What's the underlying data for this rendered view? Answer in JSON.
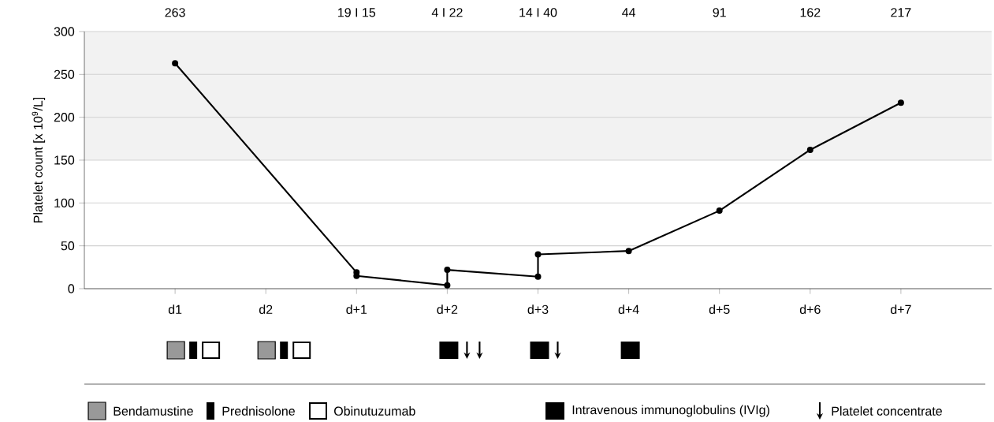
{
  "chart_data": {
    "type": "line",
    "ylabel": "Platelet count [x 10$^{9}$/L]",
    "categories": [
      "d1",
      "d2",
      "d+1",
      "d+2",
      "d+3",
      "d+4",
      "d+5",
      "d+6",
      "d+7"
    ],
    "series": [
      {
        "color": "#000000",
        "x": [
          "d1",
          "d+1",
          "d+1",
          "d+2",
          "d+2",
          "d+3",
          "d+3",
          "d+4",
          "d+5",
          "d+6",
          "d+7"
        ],
        "values": [
          263,
          19,
          15,
          4,
          22,
          14,
          40,
          44,
          91,
          162,
          217
        ]
      }
    ],
    "ylim": [
      0,
      300
    ],
    "yticks": [
      0,
      50,
      100,
      150,
      200,
      250,
      300
    ],
    "grid": "y",
    "marker": "circle",
    "line_style": "solid",
    "bands": [
      {
        "axis": "y",
        "from": 150,
        "to": 300,
        "color": "#f2f2f2"
      }
    ],
    "annotations": [
      "263",
      "19 I 15",
      "4 I 22",
      "14 I 40",
      "44",
      "91",
      "162",
      "217",
      "Bendamustine",
      "Prednisolone",
      "Obinutuzumab",
      "Intravenous immunoglobulins (IVIg)",
      "Platelet concentrate"
    ]
  }
}
